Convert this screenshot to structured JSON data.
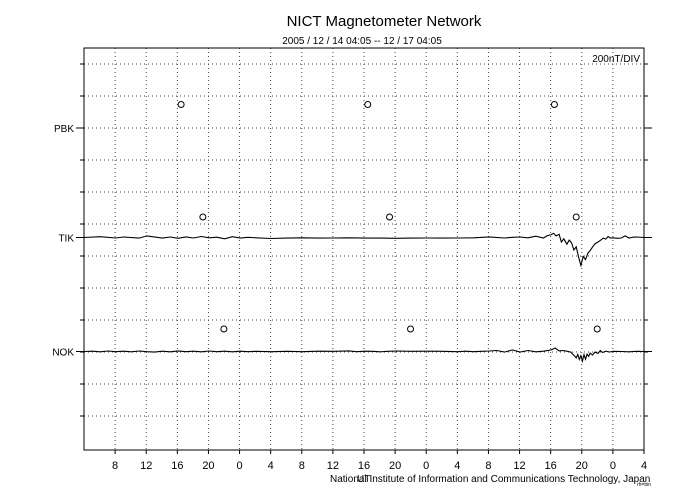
{
  "chart_data": {
    "type": "line",
    "title": "NICT Magnetometer Network",
    "subtitle": "2005 / 12 / 14   04:05 -- 12 / 17   04:05",
    "scale_label": "200nT/DIV",
    "footer": "National Institute of Information and Communications Technology, Japan",
    "footer_mark": "UT",
    "tiny_mark": "rh=bin",
    "x_tick_labels": [
      "8",
      "12",
      "16",
      "20",
      "0",
      "4",
      "8",
      "12",
      "16",
      "20",
      "0",
      "4",
      "8",
      "12",
      "16",
      "20",
      "0",
      "4"
    ],
    "x_range_hours": [
      -4.0833,
      67.9167
    ],
    "grid": true,
    "stations": [
      {
        "name": "PBK",
        "midnight_markers_h": [
          8.4,
          32.4,
          56.4
        ],
        "values": []
      },
      {
        "name": "TIK",
        "midnight_markers_h": [
          11.2,
          35.2,
          59.2
        ],
        "values": [
          [
            -4.1,
            0
          ],
          [
            -2,
            5
          ],
          [
            0,
            -3
          ],
          [
            1,
            3
          ],
          [
            3,
            -4
          ],
          [
            4,
            10
          ],
          [
            6,
            -4
          ],
          [
            7,
            3
          ],
          [
            8,
            -5
          ],
          [
            9,
            4
          ],
          [
            10,
            -3
          ],
          [
            11,
            6
          ],
          [
            12,
            -2
          ],
          [
            13,
            2
          ],
          [
            14,
            -8
          ],
          [
            15,
            5
          ],
          [
            16,
            -4
          ],
          [
            17,
            1
          ],
          [
            18,
            -2
          ],
          [
            20,
            -6
          ],
          [
            22,
            -4
          ],
          [
            24,
            -2
          ],
          [
            26,
            -4
          ],
          [
            28,
            -3
          ],
          [
            30,
            -2
          ],
          [
            32,
            -4
          ],
          [
            34,
            -3
          ],
          [
            36,
            -5
          ],
          [
            38,
            -4
          ],
          [
            40,
            -3
          ],
          [
            42,
            -4
          ],
          [
            44,
            -3
          ],
          [
            46,
            -2
          ],
          [
            48,
            4
          ],
          [
            50,
            -3
          ],
          [
            51,
            1
          ],
          [
            52,
            3
          ],
          [
            53,
            -2
          ],
          [
            54,
            8
          ],
          [
            55,
            -3
          ],
          [
            55.5,
            12
          ],
          [
            56,
            18
          ],
          [
            56.3,
            26
          ],
          [
            56.6,
            10
          ],
          [
            57,
            20
          ],
          [
            57.3,
            -28
          ],
          [
            57.6,
            -8
          ],
          [
            58,
            -42
          ],
          [
            58.3,
            -16
          ],
          [
            58.6,
            -32
          ],
          [
            58.9,
            -78
          ],
          [
            59.2,
            -58
          ],
          [
            59.5,
            -120
          ],
          [
            59.8,
            -175
          ],
          [
            60.1,
            -118
          ],
          [
            60.4,
            -138
          ],
          [
            60.7,
            -98
          ],
          [
            61,
            -82
          ],
          [
            61.3,
            -60
          ],
          [
            61.6,
            -40
          ],
          [
            62,
            -28
          ],
          [
            62.3,
            -18
          ],
          [
            62.7,
            -4
          ],
          [
            63,
            -10
          ],
          [
            63.3,
            6
          ],
          [
            63.6,
            -4
          ],
          [
            64,
            -2
          ],
          [
            64.5,
            -5
          ],
          [
            65,
            -3
          ],
          [
            65.5,
            10
          ],
          [
            66,
            -3
          ],
          [
            66.5,
            2
          ],
          [
            67,
            3
          ],
          [
            67.9,
            0
          ]
        ]
      },
      {
        "name": "NOK",
        "midnight_markers_h": [
          13.9,
          37.9,
          61.9
        ],
        "values": [
          [
            -4.1,
            0
          ],
          [
            -3,
            2
          ],
          [
            -2,
            -2
          ],
          [
            -1,
            3
          ],
          [
            0,
            -1
          ],
          [
            1,
            2
          ],
          [
            2,
            -2
          ],
          [
            3,
            3
          ],
          [
            4,
            -1
          ],
          [
            5,
            -4
          ],
          [
            6,
            2
          ],
          [
            7,
            -2
          ],
          [
            8,
            4
          ],
          [
            9,
            -1
          ],
          [
            10,
            2
          ],
          [
            11,
            -2
          ],
          [
            12,
            3
          ],
          [
            13,
            -1
          ],
          [
            14,
            2
          ],
          [
            15,
            -2
          ],
          [
            16,
            2
          ],
          [
            17,
            -1
          ],
          [
            18,
            1
          ],
          [
            20,
            -1
          ],
          [
            22,
            1
          ],
          [
            24,
            -1
          ],
          [
            26,
            2
          ],
          [
            28,
            1
          ],
          [
            30,
            4
          ],
          [
            31,
            -1
          ],
          [
            32,
            2
          ],
          [
            33,
            1
          ],
          [
            34,
            -2
          ],
          [
            35,
            1
          ],
          [
            36,
            3
          ],
          [
            38,
            1
          ],
          [
            40,
            2
          ],
          [
            42,
            1
          ],
          [
            44,
            -1
          ],
          [
            45,
            2
          ],
          [
            46,
            -1
          ],
          [
            47,
            1
          ],
          [
            48,
            3
          ],
          [
            49,
            6
          ],
          [
            50,
            -4
          ],
          [
            51,
            10
          ],
          [
            52,
            -3
          ],
          [
            53,
            6
          ],
          [
            54,
            -2
          ],
          [
            55,
            2
          ],
          [
            56,
            10
          ],
          [
            56.5,
            22
          ],
          [
            57,
            4
          ],
          [
            57.5,
            6
          ],
          [
            58,
            2
          ],
          [
            58.5,
            -4
          ],
          [
            59,
            -28
          ],
          [
            59.2,
            -40
          ],
          [
            59.4,
            -18
          ],
          [
            59.6,
            -50
          ],
          [
            59.8,
            -26
          ],
          [
            60,
            -60
          ],
          [
            60.2,
            -20
          ],
          [
            60.4,
            -48
          ],
          [
            60.6,
            -16
          ],
          [
            60.8,
            -30
          ],
          [
            61,
            -10
          ],
          [
            61.3,
            -22
          ],
          [
            61.6,
            -4
          ],
          [
            62,
            -12
          ],
          [
            62.3,
            6
          ],
          [
            62.6,
            -6
          ],
          [
            63,
            2
          ],
          [
            63.5,
            -3
          ],
          [
            64,
            1
          ],
          [
            65,
            0
          ],
          [
            66,
            -2
          ],
          [
            67,
            1
          ],
          [
            67.9,
            0
          ]
        ]
      }
    ]
  }
}
